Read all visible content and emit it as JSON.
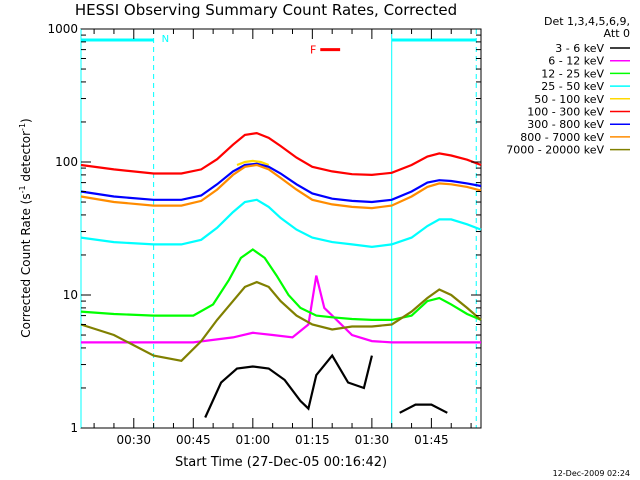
{
  "chart_data": {
    "type": "line",
    "title": "HESSI Observing Summary Count Rates, Corrected",
    "xlabel": "Start Time (27-Dec-05 00:16:42)",
    "ylabel_main": "Corrected Count Rate (s",
    "ylabel_sup1": "-1",
    "ylabel_mid": " detector",
    "ylabel_sup2": "-1",
    "ylabel_end": ")",
    "yscale": "log",
    "ylim": [
      1,
      1000
    ],
    "xlim_minutes": [
      16.7,
      117.5
    ],
    "x_ticks": [
      {
        "m": 30,
        "label": "00:30"
      },
      {
        "m": 45,
        "label": "00:45"
      },
      {
        "m": 60,
        "label": "01:00"
      },
      {
        "m": 75,
        "label": "01:15"
      },
      {
        "m": 90,
        "label": "01:30"
      },
      {
        "m": 105,
        "label": "01:45"
      }
    ],
    "y_ticks": [
      {
        "v": 1,
        "label": "1"
      },
      {
        "v": 10,
        "label": "10"
      },
      {
        "v": 100,
        "label": "100"
      },
      {
        "v": 1000,
        "label": "1000"
      }
    ],
    "legend_header": [
      "Det 1,3,4,5,6,9,",
      "Att 0"
    ],
    "series": [
      {
        "name": "3 - 6 keV",
        "color": "#000000",
        "x": [
          16.7,
          35,
          44,
          48,
          52,
          56,
          60,
          64,
          68,
          72,
          74,
          76,
          80,
          84,
          88,
          90,
          93,
          97,
          101,
          105,
          109,
          113,
          117.5
        ],
        "y": [
          null,
          null,
          null,
          1.2,
          2.2,
          2.8,
          2.9,
          2.8,
          2.3,
          1.6,
          1.4,
          2.5,
          3.5,
          2.2,
          2.0,
          3.5,
          null,
          1.3,
          1.5,
          1.5,
          1.3,
          null,
          null
        ]
      },
      {
        "name": "6 - 12 keV",
        "color": "#ff00ff",
        "x": [
          16.7,
          25,
          35,
          45,
          55,
          60,
          65,
          70,
          74,
          76,
          78,
          80,
          85,
          90,
          95,
          100,
          105,
          110,
          117.5
        ],
        "y": [
          4.4,
          4.4,
          4.4,
          4.4,
          4.8,
          5.2,
          5.0,
          4.8,
          6,
          14,
          8,
          7,
          5,
          4.5,
          4.4,
          4.4,
          4.4,
          4.4,
          4.4
        ]
      },
      {
        "name": "12 - 25 keV",
        "color": "#00ff00",
        "x": [
          16.7,
          25,
          35,
          45,
          50,
          54,
          57,
          60,
          63,
          66,
          69,
          72,
          76,
          80,
          85,
          90,
          95,
          100,
          104,
          107,
          110,
          114,
          117.5
        ],
        "y": [
          7.5,
          7.2,
          7.0,
          7.0,
          8.5,
          13,
          19,
          22,
          19,
          14,
          10,
          8,
          7,
          6.8,
          6.6,
          6.5,
          6.5,
          7,
          9,
          9.5,
          8.5,
          7.2,
          6.5
        ]
      },
      {
        "name": "25 - 50 keV",
        "color": "#00ffff",
        "x": [
          16.7,
          25,
          35,
          42,
          47,
          51,
          55,
          58,
          61,
          64,
          67,
          71,
          75,
          80,
          85,
          90,
          95,
          100,
          104,
          107,
          110,
          114,
          117.5
        ],
        "y": [
          27,
          25,
          24,
          24,
          26,
          32,
          42,
          50,
          52,
          46,
          38,
          31,
          27,
          25,
          24,
          23,
          24,
          27,
          33,
          37,
          37,
          34,
          31
        ]
      },
      {
        "name": "50 - 100 keV",
        "color": "#ffd800",
        "x": [
          56,
          58,
          60,
          62,
          64
        ],
        "y": [
          95,
          100,
          102,
          100,
          95
        ]
      },
      {
        "name": "100 - 300 keV",
        "color": "#ff0000",
        "x": [
          16.7,
          25,
          35,
          42,
          47,
          51,
          55,
          58,
          61,
          64,
          67,
          71,
          75,
          80,
          85,
          90,
          95,
          100,
          104,
          107,
          110,
          114,
          117.5
        ],
        "y": [
          95,
          88,
          82,
          82,
          88,
          105,
          135,
          160,
          165,
          152,
          132,
          108,
          92,
          85,
          81,
          80,
          83,
          95,
          110,
          116,
          112,
          104,
          95
        ]
      },
      {
        "name": "300 - 800 keV",
        "color": "#0000ff",
        "x": [
          16.7,
          25,
          35,
          42,
          47,
          51,
          55,
          58,
          61,
          64,
          67,
          71,
          75,
          80,
          85,
          90,
          95,
          100,
          104,
          107,
          110,
          114,
          117.5
        ],
        "y": [
          60,
          55,
          52,
          52,
          56,
          68,
          85,
          95,
          97,
          92,
          82,
          68,
          58,
          53,
          51,
          50,
          52,
          60,
          70,
          73,
          72,
          69,
          66
        ]
      },
      {
        "name": "800 - 7000 keV",
        "color": "#ff8c00",
        "x": [
          16.7,
          25,
          35,
          42,
          47,
          51,
          55,
          58,
          61,
          64,
          67,
          71,
          75,
          80,
          85,
          90,
          95,
          100,
          104,
          107,
          110,
          114,
          117.5
        ],
        "y": [
          55,
          50,
          47,
          47,
          51,
          62,
          80,
          92,
          95,
          88,
          76,
          62,
          52,
          48,
          46,
          45,
          47,
          55,
          65,
          69,
          68,
          65,
          61
        ]
      },
      {
        "name": "7000 - 20000 keV",
        "color": "#808000",
        "x": [
          16.7,
          25,
          35,
          42,
          47,
          51,
          55,
          58,
          61,
          64,
          67,
          71,
          75,
          80,
          85,
          90,
          95,
          100,
          104,
          107,
          110,
          114,
          117.5
        ],
        "y": [
          6,
          5,
          3.5,
          3.2,
          4.5,
          6.5,
          9,
          11.5,
          12.5,
          11.5,
          9,
          7,
          6,
          5.5,
          5.8,
          5.8,
          6,
          7.5,
          9.5,
          11,
          10,
          8,
          6.5
        ]
      }
    ],
    "markers": {
      "N_label": "N",
      "F_label": "F",
      "N_bar_minutes": [
        16.7,
        35
      ],
      "N_dashed_minutes": [
        35
      ],
      "F_bar_minutes": [
        77,
        82
      ],
      "F_level": 700,
      "cyan_bar_minutes": [
        95,
        116.3
      ],
      "cyan_solid_minutes": [
        16.7,
        95
      ],
      "cyan_dashed_minutes": [
        116.3
      ]
    },
    "footer_timestamp": "12-Dec-2009 02:24"
  }
}
